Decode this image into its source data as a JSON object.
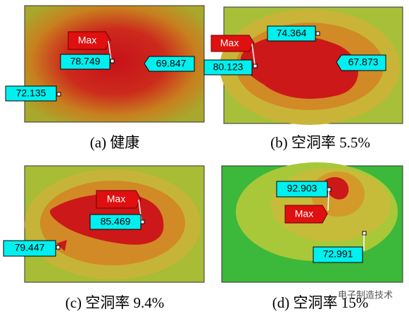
{
  "panels": [
    {
      "caption": "(a)  健康",
      "labels": [
        "Max",
        "78.749",
        "69.847",
        "72.135"
      ]
    },
    {
      "caption": "(b)  空洞率 5.5%",
      "labels": [
        "Max",
        "80.123",
        "74.364",
        "67.873"
      ]
    },
    {
      "caption": "(c)  空洞率 9.4%",
      "labels": [
        "Max",
        "85.469",
        "79.447"
      ]
    },
    {
      "caption": "(d)  空洞率 15%",
      "labels": [
        "92.903",
        "Max",
        "72.991"
      ]
    }
  ],
  "watermark": "电子制造技术"
}
